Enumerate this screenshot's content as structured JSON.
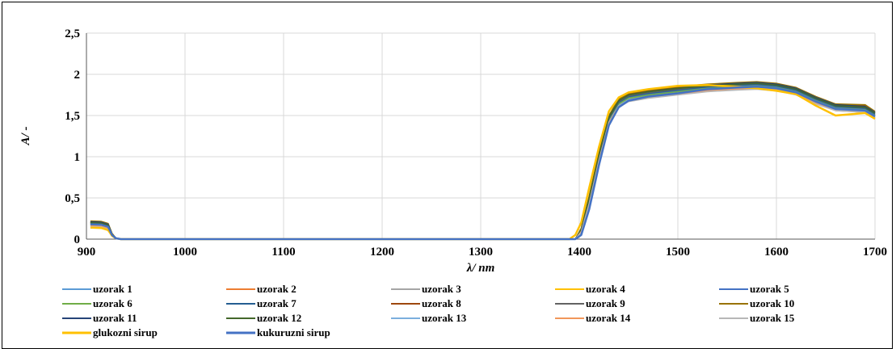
{
  "chart_data": {
    "type": "line",
    "xlabel": "λ/ nm",
    "ylabel": "A/ -",
    "xlim": [
      900,
      1700
    ],
    "ylim": [
      0,
      2.5
    ],
    "x_ticks": [
      900,
      1000,
      1100,
      1200,
      1300,
      1400,
      1500,
      1600,
      1700
    ],
    "y_ticks": [
      0,
      0.5,
      1,
      1.5,
      2,
      2.5
    ],
    "x_tick_labels": [
      "900",
      "1000",
      "1100",
      "1200",
      "1300",
      "1400",
      "1500",
      "1600",
      "1700"
    ],
    "y_tick_labels": [
      "0",
      "0,5",
      "1",
      "1,5",
      "2",
      "2,5"
    ],
    "grid": true,
    "legend_position": "bottom",
    "x": [
      904,
      915,
      922,
      926,
      930,
      935,
      1390,
      1396,
      1402,
      1410,
      1420,
      1430,
      1440,
      1450,
      1470,
      1500,
      1530,
      1560,
      1580,
      1600,
      1620,
      1640,
      1660,
      1690,
      1700
    ],
    "series": [
      {
        "name": "uzorak 1",
        "color": "#5b9bd5",
        "values": [
          0.19,
          0.185,
          0.16,
          0.06,
          0.01,
          0,
          0,
          0,
          0.1,
          0.45,
          0.98,
          1.44,
          1.64,
          1.71,
          1.75,
          1.79,
          1.83,
          1.85,
          1.86,
          1.84,
          1.79,
          1.68,
          1.59,
          1.57,
          1.5
        ]
      },
      {
        "name": "uzorak 2",
        "color": "#ed7d31",
        "values": [
          0.18,
          0.175,
          0.15,
          0.05,
          0.01,
          0,
          0,
          0,
          0.11,
          0.47,
          1.0,
          1.45,
          1.65,
          1.72,
          1.76,
          1.8,
          1.83,
          1.85,
          1.86,
          1.84,
          1.79,
          1.68,
          1.59,
          1.57,
          1.5
        ]
      },
      {
        "name": "uzorak 3",
        "color": "#a5a5a5",
        "values": [
          0.17,
          0.165,
          0.14,
          0.05,
          0.01,
          0,
          0,
          0,
          0.1,
          0.44,
          0.97,
          1.43,
          1.63,
          1.7,
          1.74,
          1.78,
          1.82,
          1.84,
          1.85,
          1.83,
          1.78,
          1.67,
          1.58,
          1.56,
          1.49
        ]
      },
      {
        "name": "uzorak 4",
        "color": "#ffc000",
        "values": [
          0.2,
          0.195,
          0.17,
          0.06,
          0.01,
          0,
          0,
          0,
          0.12,
          0.5,
          1.03,
          1.48,
          1.68,
          1.75,
          1.79,
          1.83,
          1.86,
          1.88,
          1.89,
          1.87,
          1.82,
          1.71,
          1.62,
          1.61,
          1.53
        ]
      },
      {
        "name": "uzorak 5",
        "color": "#4472c4",
        "values": [
          0.19,
          0.185,
          0.16,
          0.06,
          0.01,
          0,
          0,
          0,
          0.1,
          0.46,
          0.99,
          1.45,
          1.65,
          1.72,
          1.76,
          1.8,
          1.84,
          1.86,
          1.87,
          1.85,
          1.8,
          1.69,
          1.6,
          1.58,
          1.51
        ]
      },
      {
        "name": "uzorak 6",
        "color": "#70ad47",
        "values": [
          0.18,
          0.175,
          0.15,
          0.05,
          0.01,
          0,
          0,
          0,
          0.1,
          0.45,
          0.98,
          1.44,
          1.64,
          1.71,
          1.75,
          1.79,
          1.83,
          1.85,
          1.86,
          1.84,
          1.79,
          1.68,
          1.59,
          1.57,
          1.5
        ]
      },
      {
        "name": "uzorak 7",
        "color": "#255e91",
        "values": [
          0.2,
          0.195,
          0.17,
          0.06,
          0.01,
          0,
          0,
          0,
          0.11,
          0.48,
          1.01,
          1.46,
          1.66,
          1.73,
          1.77,
          1.81,
          1.85,
          1.87,
          1.88,
          1.86,
          1.81,
          1.7,
          1.61,
          1.59,
          1.52
        ]
      },
      {
        "name": "uzorak 8",
        "color": "#9e480e",
        "values": [
          0.21,
          0.205,
          0.18,
          0.06,
          0.01,
          0,
          0,
          0,
          0.12,
          0.5,
          1.03,
          1.49,
          1.69,
          1.76,
          1.8,
          1.84,
          1.87,
          1.89,
          1.9,
          1.88,
          1.83,
          1.72,
          1.63,
          1.62,
          1.54
        ]
      },
      {
        "name": "uzorak 9",
        "color": "#636363",
        "values": [
          0.2,
          0.195,
          0.17,
          0.06,
          0.01,
          0,
          0,
          0,
          0.11,
          0.48,
          1.01,
          1.47,
          1.67,
          1.74,
          1.78,
          1.82,
          1.86,
          1.88,
          1.89,
          1.87,
          1.82,
          1.71,
          1.62,
          1.6,
          1.53
        ]
      },
      {
        "name": "uzorak 10",
        "color": "#997300",
        "values": [
          0.22,
          0.215,
          0.19,
          0.07,
          0.01,
          0,
          0,
          0,
          0.13,
          0.52,
          1.05,
          1.5,
          1.7,
          1.77,
          1.81,
          1.85,
          1.88,
          1.9,
          1.91,
          1.89,
          1.84,
          1.73,
          1.64,
          1.63,
          1.55
        ]
      },
      {
        "name": "uzorak 11",
        "color": "#264478",
        "values": [
          0.21,
          0.205,
          0.18,
          0.06,
          0.01,
          0,
          0,
          0,
          0.12,
          0.49,
          1.02,
          1.48,
          1.68,
          1.75,
          1.79,
          1.83,
          1.87,
          1.89,
          1.9,
          1.88,
          1.83,
          1.72,
          1.63,
          1.61,
          1.54
        ]
      },
      {
        "name": "uzorak 12",
        "color": "#43682b",
        "values": [
          0.2,
          0.195,
          0.17,
          0.06,
          0.01,
          0,
          0,
          0,
          0.12,
          0.49,
          1.02,
          1.48,
          1.68,
          1.75,
          1.79,
          1.83,
          1.86,
          1.88,
          1.89,
          1.87,
          1.82,
          1.71,
          1.62,
          1.6,
          1.53
        ]
      },
      {
        "name": "uzorak 13",
        "color": "#7cafdd",
        "values": [
          0.17,
          0.165,
          0.14,
          0.05,
          0.01,
          0,
          0,
          0,
          0.09,
          0.43,
          0.96,
          1.42,
          1.62,
          1.69,
          1.73,
          1.77,
          1.81,
          1.83,
          1.84,
          1.82,
          1.77,
          1.66,
          1.57,
          1.55,
          1.48
        ]
      },
      {
        "name": "uzorak 14",
        "color": "#f1975a",
        "values": [
          0.16,
          0.155,
          0.13,
          0.05,
          0.01,
          0,
          0,
          0,
          0.09,
          0.42,
          0.95,
          1.41,
          1.61,
          1.68,
          1.72,
          1.76,
          1.8,
          1.82,
          1.83,
          1.81,
          1.76,
          1.65,
          1.56,
          1.54,
          1.47
        ]
      },
      {
        "name": "uzorak 15",
        "color": "#b7b7b7",
        "values": [
          0.15,
          0.145,
          0.12,
          0.04,
          0.01,
          0,
          0,
          0,
          0.08,
          0.41,
          0.94,
          1.4,
          1.6,
          1.67,
          1.71,
          1.75,
          1.79,
          1.81,
          1.82,
          1.8,
          1.75,
          1.64,
          1.56,
          1.54,
          1.47
        ]
      },
      {
        "name": "glukozni sirup",
        "color": "#ffc000",
        "values": [
          0.14,
          0.135,
          0.11,
          0.04,
          0.01,
          0,
          0,
          0.05,
          0.2,
          0.62,
          1.12,
          1.55,
          1.72,
          1.78,
          1.82,
          1.86,
          1.87,
          1.85,
          1.83,
          1.8,
          1.76,
          1.62,
          1.5,
          1.53,
          1.46
        ]
      },
      {
        "name": "kukuruzni sirup",
        "color": "#4472c4",
        "values": [
          0.18,
          0.175,
          0.15,
          0.05,
          0.01,
          0,
          0,
          0,
          0.05,
          0.36,
          0.9,
          1.38,
          1.6,
          1.68,
          1.73,
          1.77,
          1.82,
          1.84,
          1.85,
          1.83,
          1.78,
          1.67,
          1.58,
          1.56,
          1.49
        ]
      }
    ]
  }
}
